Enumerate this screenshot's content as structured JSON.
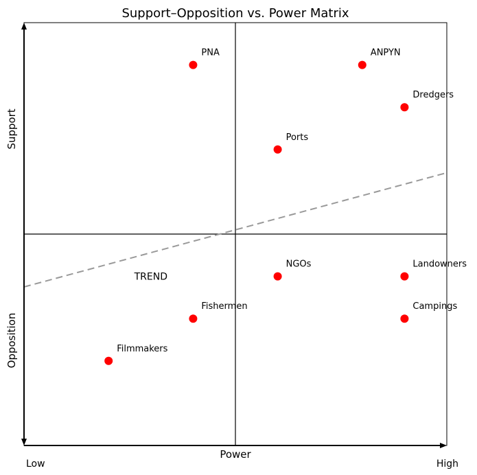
{
  "chart_data": {
    "type": "scatter",
    "title": "Support–Opposition vs. Power Matrix",
    "xlabel": "Power",
    "ylabel_top": "Support",
    "ylabel_bottom": "Opposition",
    "x_low_label": "Low",
    "x_high_label": "High",
    "xlim": [
      0,
      10
    ],
    "ylim": [
      0,
      10
    ],
    "grid": false,
    "quadrant_divider": {
      "x": 5,
      "y": 5
    },
    "points": [
      {
        "label": "PNA",
        "x": 4,
        "y": 9
      },
      {
        "label": "ANPYN",
        "x": 8,
        "y": 9
      },
      {
        "label": "Dredgers",
        "x": 9,
        "y": 8
      },
      {
        "label": "Ports",
        "x": 6,
        "y": 7
      },
      {
        "label": "NGOs",
        "x": 6,
        "y": 4
      },
      {
        "label": "Landowners",
        "x": 9,
        "y": 4
      },
      {
        "label": "Fishermen",
        "x": 4,
        "y": 3
      },
      {
        "label": "Campings",
        "x": 9,
        "y": 3
      },
      {
        "label": "Filmmakers",
        "x": 2,
        "y": 2
      }
    ],
    "trend": {
      "label": "TREND",
      "x": [
        0,
        10
      ],
      "y": [
        3.75,
        6.45
      ],
      "style": "dashed",
      "label_at": [
        3,
        4
      ]
    },
    "point_color": "#ff0000",
    "trend_color": "#999999",
    "trend_label_color": "#808080"
  }
}
